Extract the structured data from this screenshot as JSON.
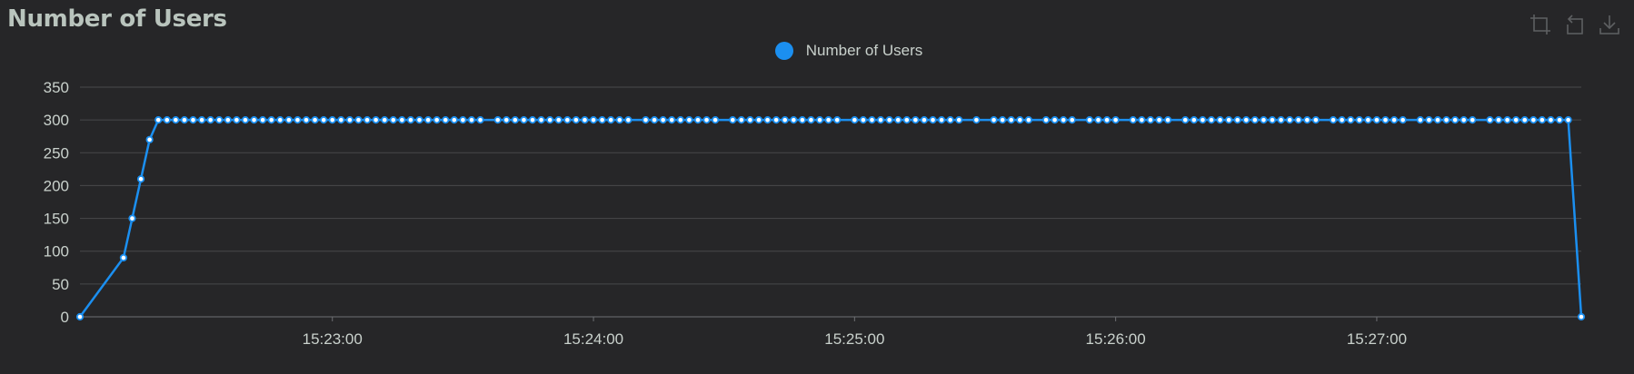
{
  "title": "Number of Users",
  "toolbox": {
    "icons": [
      "zoom-icon",
      "zoom-reset-icon",
      "download-icon"
    ]
  },
  "colors": {
    "background": "#262628",
    "series": "#1b8ff0",
    "grid": "#48494b",
    "text": "#c9d1cc",
    "icon": "#5e6062"
  },
  "chart_data": {
    "type": "line",
    "title": "Number of Users",
    "xlabel": "",
    "ylabel": "",
    "ylim": [
      0,
      350
    ],
    "yticks": [
      0,
      50,
      100,
      150,
      200,
      250,
      300,
      350
    ],
    "x_time_range": [
      "15:22:02",
      "15:27:47"
    ],
    "xticks": [
      "15:23:00",
      "15:24:00",
      "15:25:00",
      "15:26:00",
      "15:27:00"
    ],
    "legend": "top-center",
    "grid": true,
    "series": [
      {
        "name": "Number of Users",
        "points": [
          {
            "t": "15:22:02",
            "y": 0
          },
          {
            "t": "15:22:12",
            "y": 90
          },
          {
            "t": "15:22:14",
            "y": 150
          },
          {
            "t": "15:22:16",
            "y": 210
          },
          {
            "t": "15:22:18",
            "y": 270
          },
          {
            "t": "15:22:20",
            "y": 300
          },
          {
            "t": "15:27:44",
            "y": 300
          },
          {
            "t": "15:27:47",
            "y": 0
          }
        ],
        "plateau": {
          "y": 300,
          "sample_interval_s": 2,
          "from": "15:22:20",
          "to": "15:27:44",
          "gaps": [
            "15:23:36",
            "15:24:10",
            "15:24:30",
            "15:24:58",
            "15:25:26",
            "15:25:30",
            "15:25:42",
            "15:25:52",
            "15:26:02",
            "15:26:14",
            "15:26:48",
            "15:27:08",
            "15:27:24"
          ]
        }
      }
    ]
  }
}
